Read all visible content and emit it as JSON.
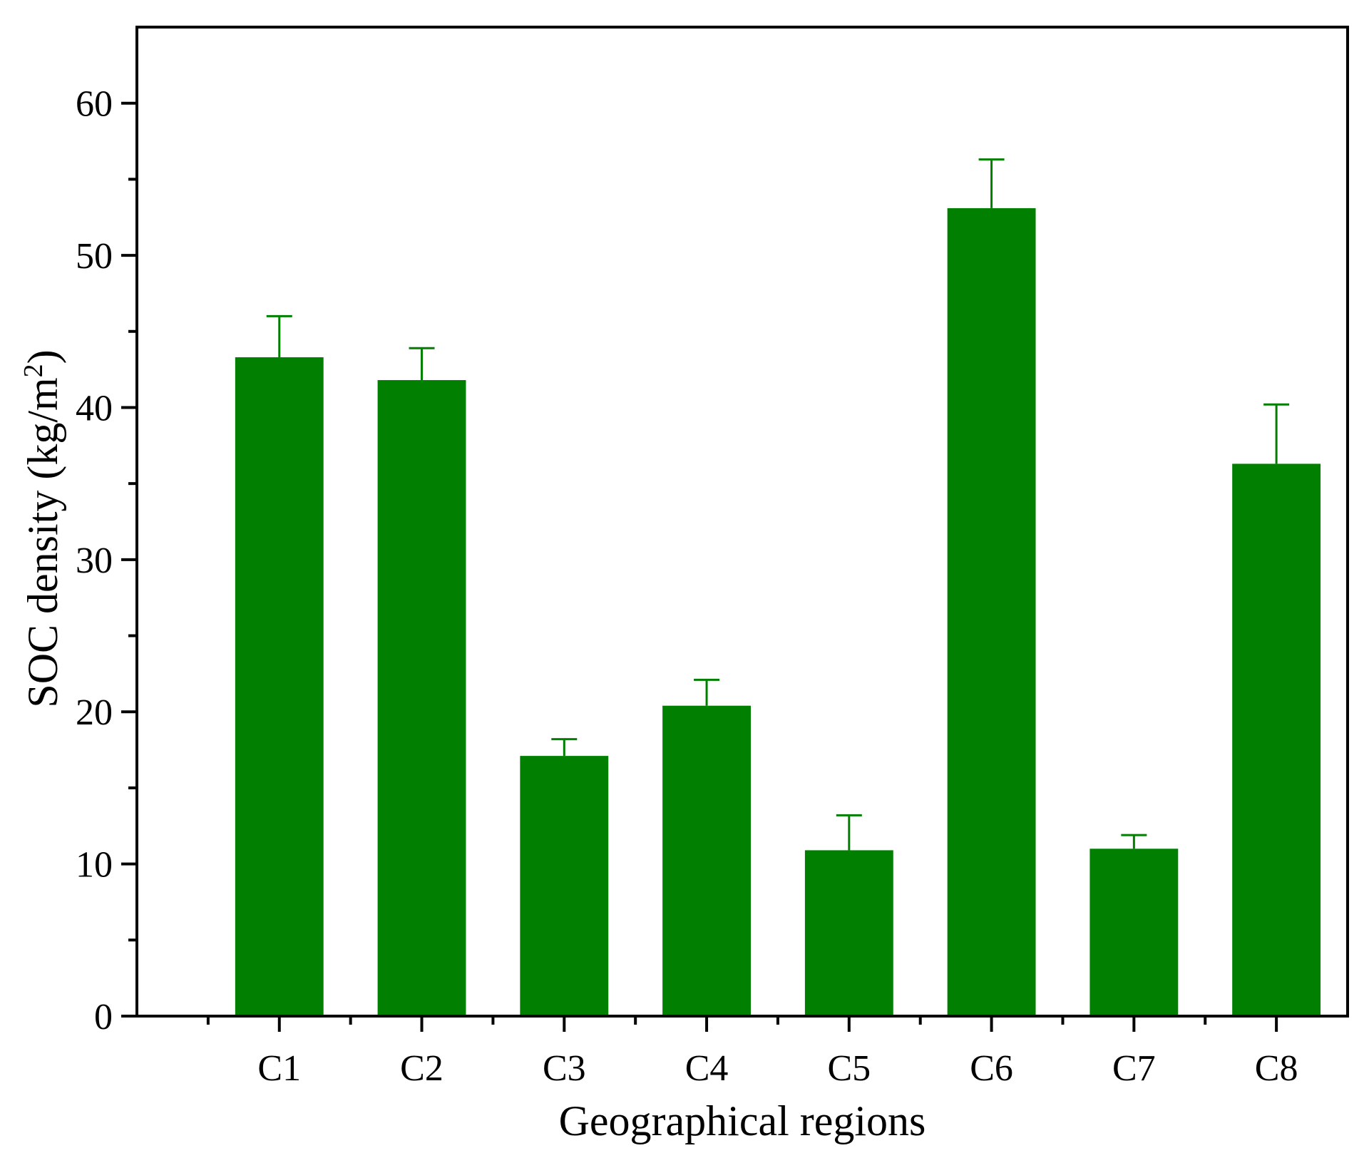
{
  "chart_data": {
    "type": "bar",
    "xlabel": "Geographical regions",
    "ylabel": "SOC density (kg/m",
    "ylabel_superscript": "2",
    "ylabel_close": ")",
    "categories": [
      "C1",
      "C2",
      "C3",
      "C4",
      "C5",
      "C6",
      "C7",
      "C8"
    ],
    "values": [
      43.3,
      41.8,
      17.1,
      20.4,
      10.9,
      53.1,
      11.0,
      36.3
    ],
    "error_upper": [
      2.7,
      2.1,
      1.1,
      1.7,
      2.3,
      3.2,
      0.9,
      3.9
    ],
    "ylim": [
      0,
      65
    ],
    "yticks": [
      0,
      10,
      20,
      30,
      40,
      50,
      60
    ],
    "ytick_labels": [
      "0",
      "10",
      "20",
      "30",
      "40",
      "50",
      "60"
    ],
    "grid": false,
    "legend": "none",
    "bar_color": "#007f00"
  }
}
